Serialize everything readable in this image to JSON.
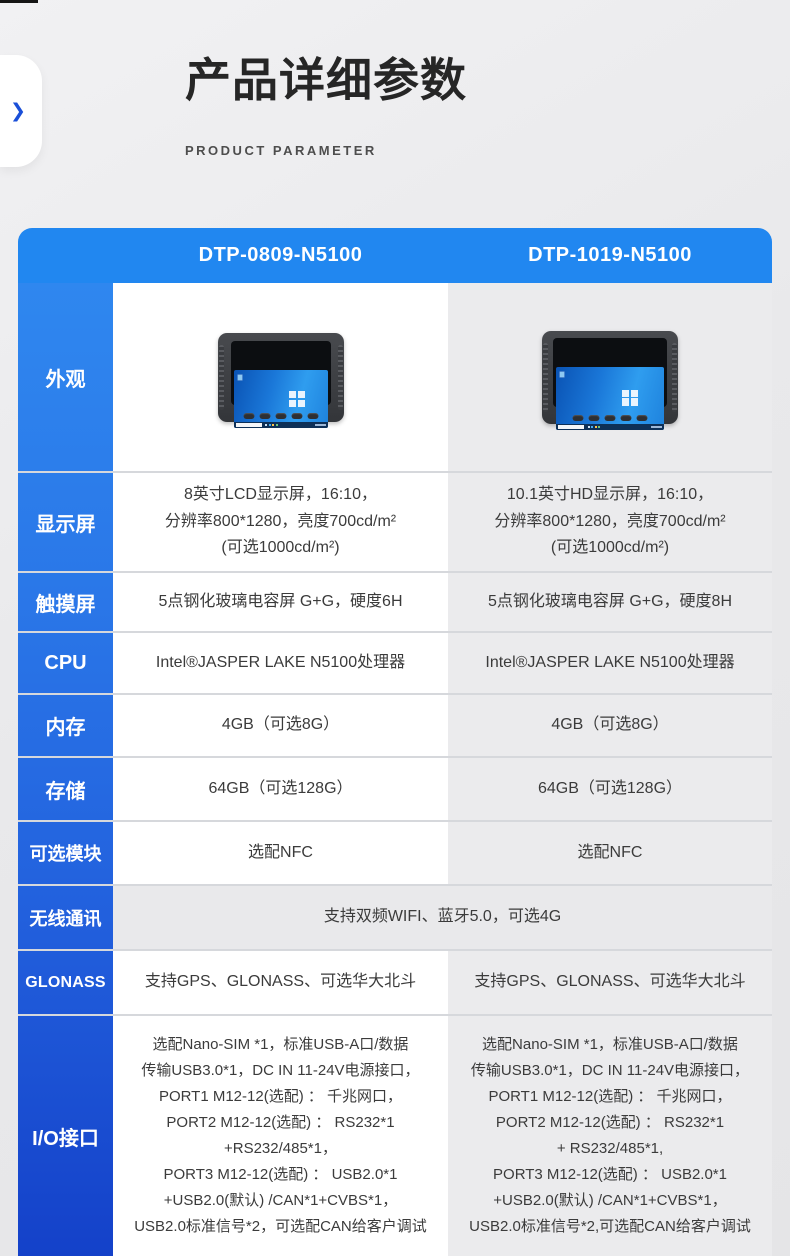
{
  "page": {
    "title": "产品详细参数",
    "subtitle": "PRODUCT PARAMETER",
    "side_tab_chevron": "❯"
  },
  "colors": {
    "header_blue": "#2187f0",
    "label_blue_top": "#2f87ef",
    "label_blue_bottom": "#1441c9",
    "col2_bg": "#ebebed",
    "chevron_blue": "#1a4fd8"
  },
  "table": {
    "col_headers": [
      "DTP-0809-N5100",
      "DTP-1019-N5100"
    ],
    "rows": [
      {
        "label": "外观",
        "type": "image",
        "image_alt": "rugged-windows-tablet-front-view"
      },
      {
        "label": "显示屏",
        "col1": "8英寸LCD显示屏，16:10，\n分辨率800*1280，亮度700cd/m²\n(可选1000cd/m²)",
        "col2": "10.1英寸HD显示屏，16:10，\n分辨率800*1280，亮度700cd/m²\n(可选1000cd/m²)"
      },
      {
        "label": "触摸屏",
        "col1": "5点钢化玻璃电容屏 G+G，硬度6H",
        "col2": "5点钢化玻璃电容屏 G+G，硬度8H"
      },
      {
        "label": "CPU",
        "col1": "Intel®JASPER LAKE N5100处理器",
        "col2": "Intel®JASPER LAKE N5100处理器"
      },
      {
        "label": "内存",
        "col1": "4GB（可选8G）",
        "col2": "4GB（可选8G）"
      },
      {
        "label": "存储",
        "col1": "64GB（可选128G）",
        "col2": "64GB（可选128G）"
      },
      {
        "label": "可选模块",
        "col1": "选配NFC",
        "col2": "选配NFC"
      },
      {
        "label": "无线通讯",
        "merged": "支持双频WIFI、蓝牙5.0，可选4G"
      },
      {
        "label": "GLONASS",
        "col1": "支持GPS、GLONASS、可选华大北斗",
        "col2": "支持GPS、GLONASS、可选华大北斗"
      },
      {
        "label": "I/O接口",
        "col1": "选配Nano-SIM *1，标准USB-A口/数据\n传输USB3.0*1，DC IN 11-24V电源接口，\nPORT1 M12-12(选配) ： 千兆网口，\nPORT2 M12-12(选配) ： RS232*1\n+RS232/485*1，\nPORT3 M12-12(选配) ： USB2.0*1\n+USB2.0(默认) /CAN*1+CVBS*1，\nUSB2.0标准信号*2，可选配CAN给客户调试",
        "col2": "选配Nano-SIM *1，标准USB-A口/数据\n传输USB3.0*1，DC IN 11-24V电源接口，\nPORT1 M12-12(选配) ： 千兆网口，\nPORT2 M12-12(选配) ： RS232*1\n+ RS232/485*1,\nPORT3 M12-12(选配) ： USB2.0*1\n+USB2.0(默认) /CAN*1+CVBS*1，\nUSB2.0标准信号*2,可选配CAN给客户调试"
      }
    ]
  }
}
